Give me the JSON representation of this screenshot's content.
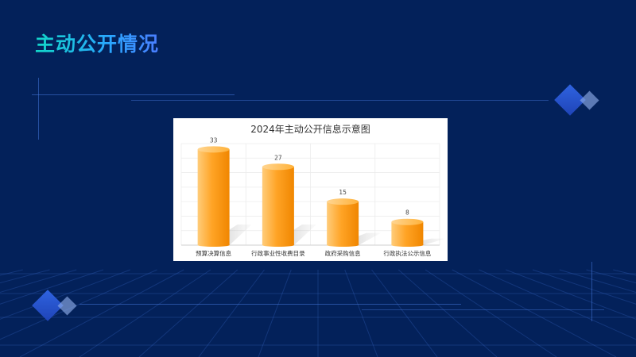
{
  "page": {
    "title": "主动公开情况",
    "colors": {
      "background": "#03215a",
      "title_gradient_start": "#12d6c8",
      "title_gradient_end": "#4a7dff",
      "bar_light": "#ffc266",
      "bar_dark": "#f38c00",
      "accent_line": "#3d6fd6"
    },
    "icons": [
      "diamond-cluster-icon",
      "diamond-cluster-icon"
    ]
  },
  "chart_data": {
    "type": "bar",
    "title": "2024年主动公开信息示意图",
    "categories": [
      "预算决算信息",
      "行政事业性收费目录",
      "政府采购信息",
      "行政执法公示信息"
    ],
    "values": [
      33,
      27,
      15,
      8
    ],
    "ylim": [
      0,
      35
    ],
    "grid": true,
    "legend": "none",
    "style": "3d-cylinder",
    "xlabel": "",
    "ylabel": ""
  }
}
